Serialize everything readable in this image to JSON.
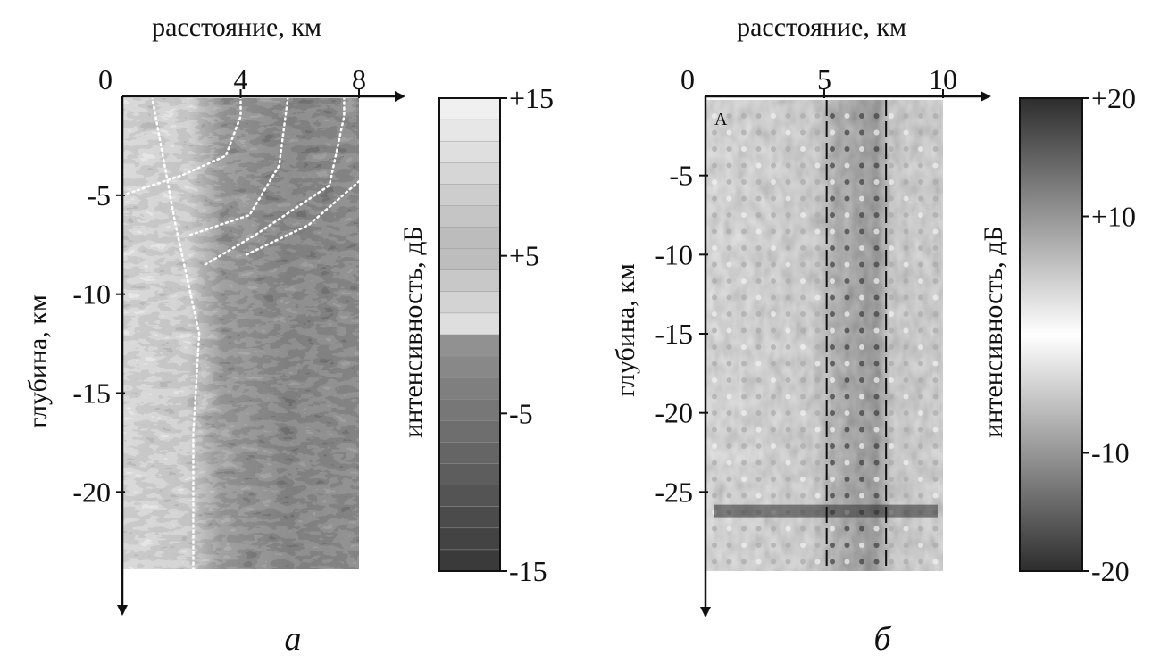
{
  "figure": {
    "panel_a": {
      "letter": "а",
      "x_title": "расстояние, км",
      "y_title": "глубина, км",
      "colorbar_title": "интенсивность, дБ",
      "x_ticks": [
        "0",
        "4",
        "8"
      ],
      "y_ticks": [
        "-5",
        "-10",
        "-15",
        "-20"
      ],
      "colorbar_ticks": [
        "+15",
        "+5",
        "-5",
        "-15"
      ]
    },
    "panel_b": {
      "letter": "б",
      "x_title": "расстояние, км",
      "y_title": "глубина, км",
      "colorbar_title": "интенсивность, дБ",
      "corner_label": "A",
      "x_ticks": [
        "0",
        "5",
        "10"
      ],
      "y_ticks": [
        "-5",
        "-10",
        "-15",
        "-20",
        "-25"
      ],
      "colorbar_ticks": [
        "+20",
        "+10",
        "-10",
        "-20"
      ]
    }
  },
  "chart_data": [
    {
      "type": "heatmap",
      "panel": "а",
      "xlabel": "расстояние, км",
      "ylabel": "глубина, км",
      "colorbar_label": "интенсивность, дБ",
      "xlim": [
        0,
        8
      ],
      "ylim": [
        -24,
        0
      ],
      "x_ticks": [
        0,
        4,
        8
      ],
      "y_ticks": [
        -5,
        -10,
        -15,
        -20
      ],
      "colorbar": {
        "range": [
          -15,
          15
        ],
        "ticks": [
          15,
          5,
          -5,
          -15
        ],
        "levels": 22,
        "low_color": "#3a3a3a",
        "high_color": "#f0f0f0"
      },
      "overlay_lines": [
        {
          "style": "dotted",
          "points": [
            [
              1.0,
              0
            ],
            [
              1.8,
              -6.5
            ],
            [
              2.6,
              -12
            ],
            [
              2.4,
              -17
            ],
            [
              2.4,
              -24
            ]
          ]
        },
        {
          "style": "dotted",
          "points": [
            [
              0,
              -5
            ],
            [
              2.0,
              -4
            ],
            [
              3.5,
              -3
            ],
            [
              4.0,
              -1
            ],
            [
              4.0,
              0
            ]
          ]
        },
        {
          "style": "dotted",
          "points": [
            [
              2.3,
              -7
            ],
            [
              4.3,
              -6
            ],
            [
              5.3,
              -3.5
            ],
            [
              5.6,
              0
            ]
          ]
        },
        {
          "style": "dotted",
          "points": [
            [
              2.8,
              -8.5
            ],
            [
              4.5,
              -7
            ],
            [
              7.0,
              -4.5
            ],
            [
              7.5,
              -1
            ],
            [
              7.5,
              0
            ]
          ]
        },
        {
          "style": "dotted",
          "points": [
            [
              4.2,
              -8
            ],
            [
              6.3,
              -6.5
            ],
            [
              8.0,
              -4.3
            ]
          ]
        }
      ]
    },
    {
      "type": "heatmap",
      "panel": "б",
      "xlabel": "расстояние, км",
      "ylabel": "глубина, км",
      "colorbar_label": "интенсивность, дБ",
      "xlim": [
        0,
        10
      ],
      "ylim": [
        -30,
        0
      ],
      "x_ticks": [
        0,
        5,
        10
      ],
      "y_ticks": [
        -5,
        -10,
        -15,
        -20,
        -25
      ],
      "colorbar": {
        "range": [
          -20,
          20
        ],
        "ticks": [
          20,
          10,
          -10,
          -20
        ],
        "low_color": "#2d2d2d",
        "mid_color": "#ffffff",
        "high_color": "#2d2d2d"
      },
      "vertical_dashed_lines_x": [
        5.1,
        7.6
      ],
      "annotations": [
        "A"
      ]
    }
  ]
}
